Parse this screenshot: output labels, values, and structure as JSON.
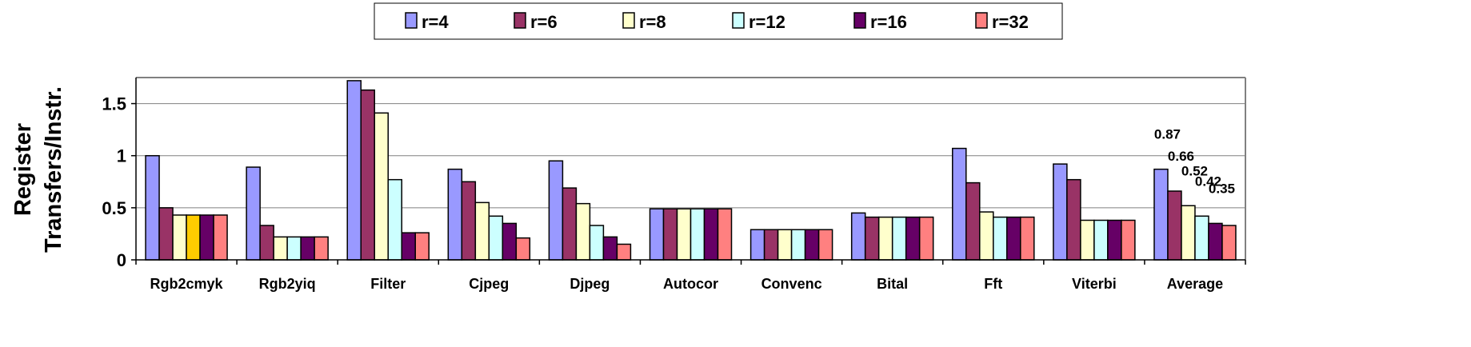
{
  "chart_data": {
    "type": "bar",
    "ylabel_lines": [
      "Register",
      "Transfers/Instr."
    ],
    "ylim": [
      0,
      1.75
    ],
    "yticks": [
      0,
      0.5,
      1,
      1.5
    ],
    "ytick_labels": [
      "0",
      "0.5",
      "1",
      "1.5"
    ],
    "grid": "horizontal",
    "legend_position": "top-center",
    "categories": [
      "Rgb2cmyk",
      "Rgb2yiq",
      "Filter",
      "Cjpeg",
      "Djpeg",
      "Autocor",
      "Convenc",
      "Bital",
      "Fft",
      "Viterbi",
      "Average"
    ],
    "series": [
      {
        "name": "r=4",
        "color": "#9999ff",
        "values": [
          1.0,
          0.89,
          1.72,
          0.87,
          0.95,
          0.49,
          0.29,
          0.45,
          1.07,
          0.92,
          0.87
        ]
      },
      {
        "name": "r=6",
        "color": "#993366",
        "values": [
          0.5,
          0.33,
          1.63,
          0.75,
          0.69,
          0.49,
          0.29,
          0.41,
          0.74,
          0.77,
          0.66
        ]
      },
      {
        "name": "r=8",
        "color": "#ffffcc",
        "values": [
          0.43,
          0.22,
          1.41,
          0.55,
          0.54,
          0.49,
          0.29,
          0.41,
          0.46,
          0.38,
          0.52
        ]
      },
      {
        "name": "r=12",
        "color": "#ccffff",
        "values": [
          0.43,
          0.22,
          0.77,
          0.42,
          0.33,
          0.49,
          0.29,
          0.41,
          0.41,
          0.38,
          0.42
        ]
      },
      {
        "name": "r=16",
        "color": "#660066",
        "values": [
          0.43,
          0.22,
          0.26,
          0.35,
          0.22,
          0.49,
          0.29,
          0.41,
          0.41,
          0.38,
          0.35
        ]
      },
      {
        "name": "r=32",
        "color": "#ff8080",
        "values": [
          0.43,
          0.22,
          0.26,
          0.21,
          0.15,
          0.49,
          0.29,
          0.41,
          0.41,
          0.38,
          0.33
        ]
      }
    ],
    "highlight": {
      "category": "Rgb2cmyk",
      "series": "r=12",
      "color": "#ffcc00"
    },
    "data_labels": {
      "category": "Average",
      "labels": [
        "0.87",
        "0.66",
        "0.52",
        "0.42",
        "0.35"
      ]
    },
    "colors": {
      "plot_border": "#808080",
      "grid": "#808080",
      "bar_stroke": "#000000"
    }
  }
}
